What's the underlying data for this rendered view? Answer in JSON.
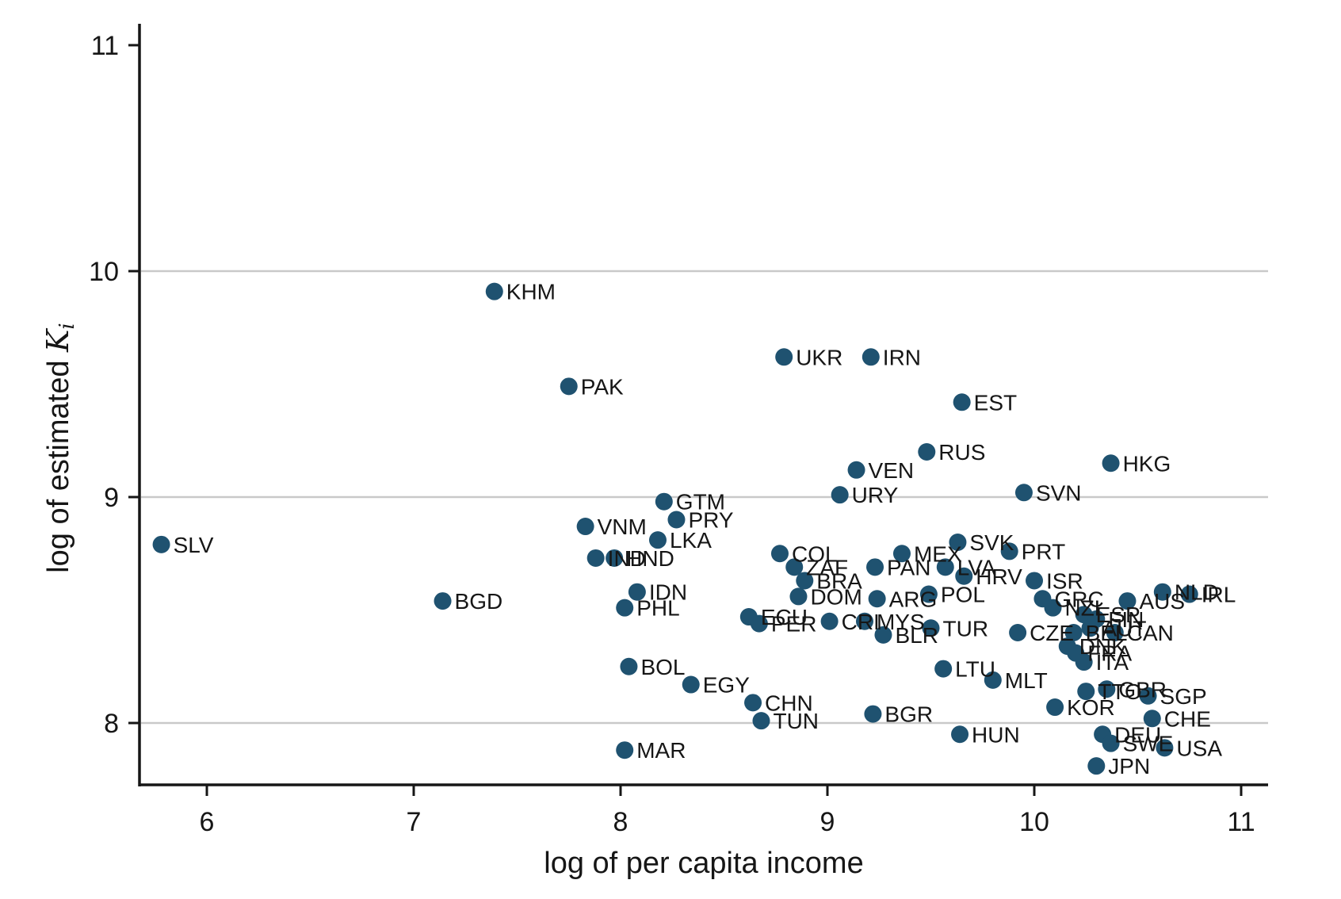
{
  "chart_data": {
    "type": "scatter",
    "title": "",
    "xlabel": "log of per capita income",
    "ylabel": "log of estimated K_i",
    "ylabel_parts": {
      "prefix": "log of estimated ",
      "var": "K",
      "sub": "i"
    },
    "xlim": [
      5.67,
      11.13
    ],
    "ylim": [
      7.72,
      11.1
    ],
    "xticks": [
      6,
      7,
      8,
      9,
      10,
      11
    ],
    "yticks": [
      8,
      9,
      10,
      11
    ],
    "gridlines_y": [
      8,
      9,
      10
    ],
    "grid": "horizontal-only",
    "legend": "none",
    "marker_color": "#1f5270",
    "grid_color": "#c9c9c9",
    "axis_color": "#161616",
    "label_color": "#161616",
    "points": [
      {
        "label": "SLV",
        "x": 5.78,
        "y": 8.79
      },
      {
        "label": "BGD",
        "x": 7.14,
        "y": 8.54
      },
      {
        "label": "KHM",
        "x": 7.39,
        "y": 9.91
      },
      {
        "label": "PAK",
        "x": 7.75,
        "y": 9.49
      },
      {
        "label": "VNM",
        "x": 7.83,
        "y": 8.87
      },
      {
        "label": "IND",
        "x": 7.88,
        "y": 8.73
      },
      {
        "label": "HND",
        "x": 7.97,
        "y": 8.73
      },
      {
        "label": "MAR",
        "x": 8.02,
        "y": 7.88
      },
      {
        "label": "PHL",
        "x": 8.02,
        "y": 8.51
      },
      {
        "label": "BOL",
        "x": 8.04,
        "y": 8.25
      },
      {
        "label": "IDN",
        "x": 8.08,
        "y": 8.58
      },
      {
        "label": "LKA",
        "x": 8.18,
        "y": 8.81
      },
      {
        "label": "GTM",
        "x": 8.21,
        "y": 8.98
      },
      {
        "label": "PRY",
        "x": 8.27,
        "y": 8.9
      },
      {
        "label": "EGY",
        "x": 8.34,
        "y": 8.17
      },
      {
        "label": "ECU",
        "x": 8.62,
        "y": 8.47
      },
      {
        "label": "CHN",
        "x": 8.64,
        "y": 8.09
      },
      {
        "label": "PER",
        "x": 8.67,
        "y": 8.44
      },
      {
        "label": "TUN",
        "x": 8.68,
        "y": 8.01
      },
      {
        "label": "COL",
        "x": 8.77,
        "y": 8.75
      },
      {
        "label": "UKR",
        "x": 8.79,
        "y": 9.62
      },
      {
        "label": "ZAF",
        "x": 8.84,
        "y": 8.69
      },
      {
        "label": "DOM",
        "x": 8.86,
        "y": 8.56
      },
      {
        "label": "BRA",
        "x": 8.89,
        "y": 8.63
      },
      {
        "label": "CRI",
        "x": 9.01,
        "y": 8.45
      },
      {
        "label": "URY",
        "x": 9.06,
        "y": 9.01
      },
      {
        "label": "VEN",
        "x": 9.14,
        "y": 9.12
      },
      {
        "label": "MYS",
        "x": 9.18,
        "y": 8.45
      },
      {
        "label": "IRN",
        "x": 9.21,
        "y": 9.62
      },
      {
        "label": "BGR",
        "x": 9.22,
        "y": 8.04
      },
      {
        "label": "PAN",
        "x": 9.23,
        "y": 8.69
      },
      {
        "label": "ARG",
        "x": 9.24,
        "y": 8.55
      },
      {
        "label": "BLR",
        "x": 9.27,
        "y": 8.39
      },
      {
        "label": "MEX",
        "x": 9.36,
        "y": 8.75
      },
      {
        "label": "RUS",
        "x": 9.48,
        "y": 9.2
      },
      {
        "label": "POL",
        "x": 9.49,
        "y": 8.57
      },
      {
        "label": "TUR",
        "x": 9.5,
        "y": 8.42
      },
      {
        "label": "LTU",
        "x": 9.56,
        "y": 8.24
      },
      {
        "label": "LVA",
        "x": 9.57,
        "y": 8.69
      },
      {
        "label": "SVK",
        "x": 9.63,
        "y": 8.8
      },
      {
        "label": "HUN",
        "x": 9.64,
        "y": 7.95
      },
      {
        "label": "EST",
        "x": 9.65,
        "y": 9.42
      },
      {
        "label": "HRV",
        "x": 9.66,
        "y": 8.65
      },
      {
        "label": "MLT",
        "x": 9.8,
        "y": 8.19
      },
      {
        "label": "PRT",
        "x": 9.88,
        "y": 8.76
      },
      {
        "label": "CZE",
        "x": 9.92,
        "y": 8.4
      },
      {
        "label": "SVN",
        "x": 9.95,
        "y": 9.02
      },
      {
        "label": "ISR",
        "x": 10.0,
        "y": 8.63
      },
      {
        "label": "GRC",
        "x": 10.04,
        "y": 8.55
      },
      {
        "label": "NZL",
        "x": 10.09,
        "y": 8.51
      },
      {
        "label": "KOR",
        "x": 10.1,
        "y": 8.07
      },
      {
        "label": "DNK",
        "x": 10.16,
        "y": 8.34
      },
      {
        "label": "BEL",
        "x": 10.19,
        "y": 8.4
      },
      {
        "label": "FRA",
        "x": 10.2,
        "y": 8.31
      },
      {
        "label": "ESP",
        "x": 10.24,
        "y": 8.48
      },
      {
        "label": "ITA",
        "x": 10.24,
        "y": 8.27
      },
      {
        "label": "TTO",
        "x": 10.25,
        "y": 8.14
      },
      {
        "label": "AUT",
        "x": 10.27,
        "y": 8.42
      },
      {
        "label": "FIN",
        "x": 10.3,
        "y": 8.46
      },
      {
        "label": "JPN",
        "x": 10.3,
        "y": 7.81
      },
      {
        "label": "DEU",
        "x": 10.33,
        "y": 7.95
      },
      {
        "label": "GBR",
        "x": 10.35,
        "y": 8.15
      },
      {
        "label": "HKG",
        "x": 10.37,
        "y": 9.15
      },
      {
        "label": "SWE",
        "x": 10.37,
        "y": 7.91
      },
      {
        "label": "CAN",
        "x": 10.39,
        "y": 8.4
      },
      {
        "label": "AUS",
        "x": 10.45,
        "y": 8.54
      },
      {
        "label": "SGP",
        "x": 10.55,
        "y": 8.12
      },
      {
        "label": "CHE",
        "x": 10.57,
        "y": 8.02
      },
      {
        "label": "NLD",
        "x": 10.62,
        "y": 8.58
      },
      {
        "label": "USA",
        "x": 10.63,
        "y": 7.89
      },
      {
        "label": "IRL",
        "x": 10.75,
        "y": 8.57
      }
    ]
  }
}
